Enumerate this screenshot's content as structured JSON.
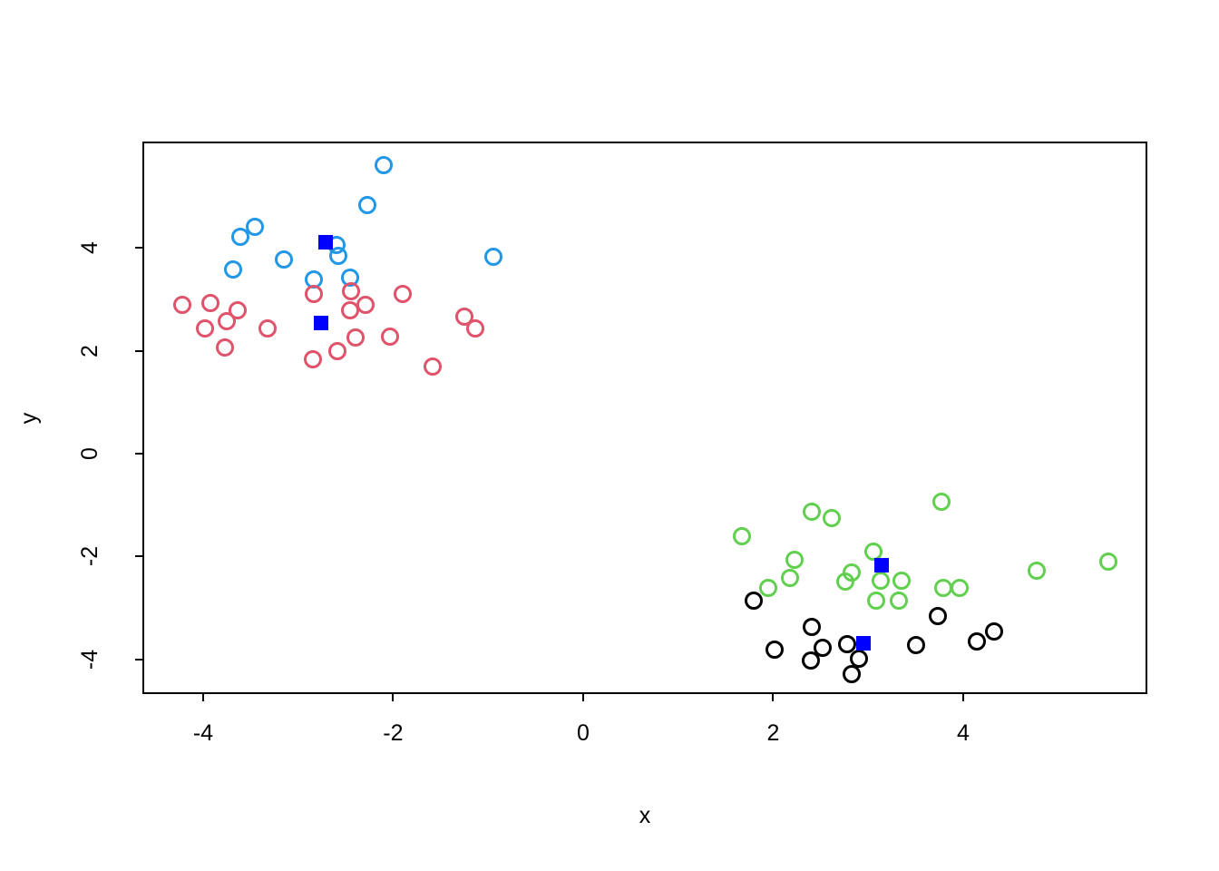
{
  "chart_data": {
    "type": "scatter",
    "title": "",
    "xlabel": "x",
    "ylabel": "y",
    "xlim": [
      -4.62,
      5.92
    ],
    "ylim": [
      -4.64,
      6.03
    ],
    "xticks": [
      "-4",
      "-2",
      "0",
      "2",
      "4"
    ],
    "xtick_values": [
      -4,
      -2,
      0,
      2,
      4
    ],
    "yticks": [
      "-4",
      "-2",
      "0",
      "2",
      "4"
    ],
    "ytick_values": [
      -4,
      -2,
      0,
      2,
      4
    ],
    "grid": false,
    "legend": "none",
    "frame_color": "#000000",
    "background_color": "#ffffff",
    "series": [
      {
        "name": "cluster-blue",
        "marker": "circle",
        "color": "#2297E6",
        "points": [
          [
            -2.1,
            5.61
          ],
          [
            -2.27,
            4.83
          ],
          [
            -3.46,
            4.41
          ],
          [
            -3.61,
            4.21
          ],
          [
            -3.15,
            3.78
          ],
          [
            -3.68,
            3.57
          ],
          [
            -2.6,
            4.05
          ],
          [
            -2.58,
            3.85
          ],
          [
            -2.83,
            3.38
          ],
          [
            -2.45,
            3.42
          ],
          [
            -0.94,
            3.83
          ]
        ]
      },
      {
        "name": "cluster-red",
        "marker": "circle",
        "color": "#DF536B",
        "points": [
          [
            -2.83,
            3.11
          ],
          [
            -2.44,
            3.16
          ],
          [
            -1.9,
            3.11
          ],
          [
            -4.22,
            2.89
          ],
          [
            -3.92,
            2.93
          ],
          [
            -3.64,
            2.79
          ],
          [
            -3.75,
            2.58
          ],
          [
            -2.45,
            2.78
          ],
          [
            -2.29,
            2.89
          ],
          [
            -3.98,
            2.43
          ],
          [
            -3.32,
            2.44
          ],
          [
            -1.25,
            2.67
          ],
          [
            -1.14,
            2.44
          ],
          [
            -2.4,
            2.26
          ],
          [
            -2.03,
            2.28
          ],
          [
            -3.77,
            2.06
          ],
          [
            -2.59,
            1.99
          ],
          [
            -2.84,
            1.83
          ],
          [
            -1.58,
            1.69
          ]
        ]
      },
      {
        "name": "cluster-green",
        "marker": "circle",
        "color": "#61D04F",
        "points": [
          [
            3.77,
            -0.94
          ],
          [
            2.41,
            -1.13
          ],
          [
            2.62,
            -1.26
          ],
          [
            1.67,
            -1.6
          ],
          [
            3.06,
            -1.9
          ],
          [
            2.23,
            -2.07
          ],
          [
            2.83,
            -2.31
          ],
          [
            2.18,
            -2.41
          ],
          [
            2.76,
            -2.48
          ],
          [
            3.13,
            -2.47
          ],
          [
            3.35,
            -2.47
          ],
          [
            1.95,
            -2.62
          ],
          [
            3.79,
            -2.61
          ],
          [
            3.96,
            -2.61
          ],
          [
            3.08,
            -2.86
          ],
          [
            3.32,
            -2.86
          ],
          [
            4.77,
            -2.27
          ],
          [
            5.53,
            -2.1
          ]
        ]
      },
      {
        "name": "cluster-black",
        "marker": "circle",
        "color": "#000000",
        "points": [
          [
            1.8,
            -2.86
          ],
          [
            2.41,
            -3.37
          ],
          [
            3.73,
            -3.16
          ],
          [
            2.02,
            -3.81
          ],
          [
            2.52,
            -3.77
          ],
          [
            2.78,
            -3.7
          ],
          [
            2.4,
            -4.03
          ],
          [
            2.9,
            -3.99
          ],
          [
            2.83,
            -4.28
          ],
          [
            3.5,
            -3.73
          ],
          [
            4.14,
            -3.65
          ],
          [
            4.33,
            -3.46
          ]
        ]
      },
      {
        "name": "cluster-centers",
        "marker": "filled-square",
        "color": "#0000FF",
        "points": [
          [
            -2.71,
            4.1
          ],
          [
            -2.76,
            2.54
          ],
          [
            3.14,
            -2.17
          ],
          [
            2.95,
            -3.68
          ]
        ]
      }
    ]
  }
}
